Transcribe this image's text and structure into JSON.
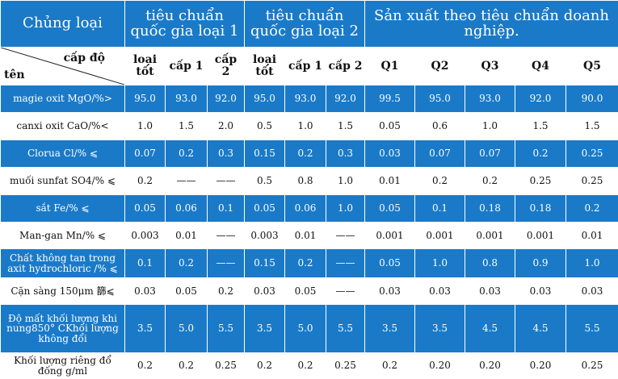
{
  "header": {
    "type_label": "Chủng loại",
    "group1": "tiêu chuẩn quốc gia loại 1",
    "group2": "tiêu chuẩn quốc gia loại 2",
    "group3": "Sản xuất theo tiêu chuẩn doanh nghiệp.",
    "level_label": "cấp độ",
    "name_label": "tên"
  },
  "grades": [
    "loại tốt",
    "cấp 1",
    "cấp 2",
    "loại tốt",
    "cấp 1",
    "cấp 2",
    "Q1",
    "Q2",
    "Q3",
    "Q4",
    "Q5"
  ],
  "rows": [
    {
      "name": "magie oxit MgO/%>",
      "values": [
        "95.0",
        "93.0",
        "92.0",
        "95.0",
        "93.0",
        "92.0",
        "99.5",
        "95.0",
        "93.0",
        "92.0",
        "90.0"
      ]
    },
    {
      "name": "canxi oxit CaO/%<",
      "values": [
        "1.0",
        "1.5",
        "2.0",
        "0.5",
        "1.0",
        "1.5",
        "0.05",
        "0.6",
        "1.0",
        "1.5",
        "1.5"
      ]
    },
    {
      "name": "Clorua Cl/% ⩽",
      "values": [
        "0.07",
        "0.2",
        "0.3",
        "0.15",
        "0.2",
        "0.3",
        "0.03",
        "0.07",
        "0.07",
        "0.2",
        "0.25"
      ]
    },
    {
      "name": "muối sunfat SO4/% ⩽",
      "values": [
        "0.2",
        "——",
        "——",
        "0.5",
        "0.8",
        "1.0",
        "0.01",
        "0.2",
        "0.2",
        "0.25",
        "0.25"
      ]
    },
    {
      "name": "sắt Fe/% ⩽",
      "values": [
        "0.05",
        "0.06",
        "0.1",
        "0.05",
        "0.06",
        "1.0",
        "0.05",
        "0.1",
        "0.18",
        "0.18",
        "0.2"
      ]
    },
    {
      "name": "Man-gan Mn/% ⩽",
      "values": [
        "0.003",
        "0.01",
        "——",
        "0.003",
        "0.01",
        "——",
        "0.001",
        "0.001",
        "0.001",
        "0.001",
        "0.01"
      ]
    },
    {
      "name": "Chất không tan trong axit hydrochloric /% ⩽",
      "values": [
        "0.1",
        "0.2",
        "——",
        "0.15",
        "0.2",
        "——",
        "0.05",
        "1.0",
        "0.8",
        "0.9",
        "1.0"
      ]
    },
    {
      "name": "Cặn sàng 150μm 篩⩽",
      "values": [
        "0.03",
        "0.05",
        "0.2",
        "0.03",
        "0.05",
        "——",
        "0.03",
        "0.03",
        "0.03",
        "0.03",
        "0.03"
      ]
    },
    {
      "name": "Độ mất khối lượng khi nung850° CKhối lượng không đổi",
      "values": [
        "3.5",
        "5.0",
        "5.5",
        "3.5",
        "5.0",
        "5.5",
        "3.5",
        "3.5",
        "4.5",
        "4.5",
        "5.5"
      ]
    },
    {
      "name": "Khối lượng riêng đổ đống g/ml",
      "values": [
        "0.2",
        "0.2",
        "0.25",
        "0.2",
        "0.2",
        "0.25",
        "0.2",
        "0.20",
        "0.20",
        "0.20",
        "0.25"
      ]
    }
  ],
  "colors": {
    "header_blue": "#1a7ac8",
    "text_dark": "#111111",
    "background": "#ffffff"
  }
}
